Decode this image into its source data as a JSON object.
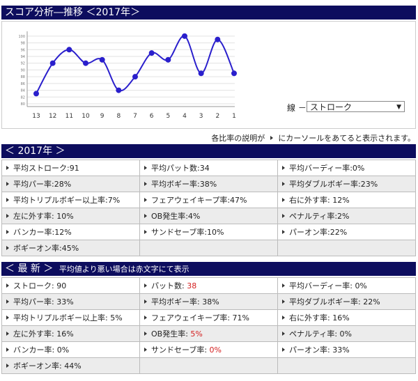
{
  "header": {
    "title": "スコア分析―推移 ＜2017年＞"
  },
  "chart_data": {
    "type": "line",
    "categories": [
      "13",
      "12",
      "11",
      "10",
      "9",
      "8",
      "7",
      "6",
      "5",
      "4",
      "3",
      "2",
      "1"
    ],
    "series": [
      {
        "values": [
          83,
          92,
          96,
          92,
          93,
          84,
          88,
          95,
          93,
          100,
          89,
          99,
          89
        ]
      }
    ],
    "line_color": "#2a1fcc"
  },
  "line_control": {
    "label": "線 －",
    "selected": "ストローク"
  },
  "note": {
    "before": "各比率の説明が",
    "after": "にカーソールをあてると表示されます。"
  },
  "year_section": {
    "title": "＜ 2017年 ＞",
    "rows": [
      [
        {
          "text": "平均ストローク:91"
        },
        {
          "text": "平均パット数:34"
        },
        {
          "text": "平均バーディー率:0%"
        }
      ],
      [
        {
          "text": "平均パー率:28%"
        },
        {
          "text": "平均ボギー率:38%"
        },
        {
          "text": "平均ダブルボギー率:23%"
        }
      ],
      [
        {
          "text": "平均トリプルボギー以上率:7%"
        },
        {
          "text": "フェアウェイキープ率:47%"
        },
        {
          "text": "右に外す率: 12%"
        }
      ],
      [
        {
          "text": "左に外す率: 10%"
        },
        {
          "text": "OB発生率:4%"
        },
        {
          "text": "ペナルティ率:2%"
        }
      ],
      [
        {
          "text": "バンカー率:12%"
        },
        {
          "text": "サンドセーブ率:10%"
        },
        {
          "text": "パーオン率:22%"
        }
      ],
      [
        {
          "text": "ボギーオン率:45%"
        }
      ]
    ]
  },
  "latest_section": {
    "title": "＜ 最 新 ＞",
    "subtitle": "平均値より悪い場合は赤文字にて表示",
    "rows": [
      [
        {
          "label": "ストローク: ",
          "value": "90"
        },
        {
          "label": "パット数: ",
          "value": "38",
          "red": true
        },
        {
          "label": "平均バーディー率: ",
          "value": "0%"
        }
      ],
      [
        {
          "label": "平均パー率: ",
          "value": "33%"
        },
        {
          "label": "平均ボギー率: ",
          "value": "38%"
        },
        {
          "label": "平均ダブルボギー率: ",
          "value": "22%"
        }
      ],
      [
        {
          "label": "平均トリプルボギー以上率: ",
          "value": "5%"
        },
        {
          "label": "フェアウェイキープ率: ",
          "value": "71%"
        },
        {
          "label": "右に外す率: ",
          "value": "16%"
        }
      ],
      [
        {
          "label": "左に外す率: ",
          "value": "16%"
        },
        {
          "label": "OB発生率: ",
          "value": "5%",
          "red": true
        },
        {
          "label": "ペナルティ率: ",
          "value": "0%"
        }
      ],
      [
        {
          "label": "バンカー率: ",
          "value": "0%"
        },
        {
          "label": "サンドセーブ率: ",
          "value": "0%",
          "red": true
        },
        {
          "label": "パーオン率: ",
          "value": "33%"
        }
      ],
      [
        {
          "label": "ボギーオン率: ",
          "value": "44%"
        }
      ]
    ]
  }
}
